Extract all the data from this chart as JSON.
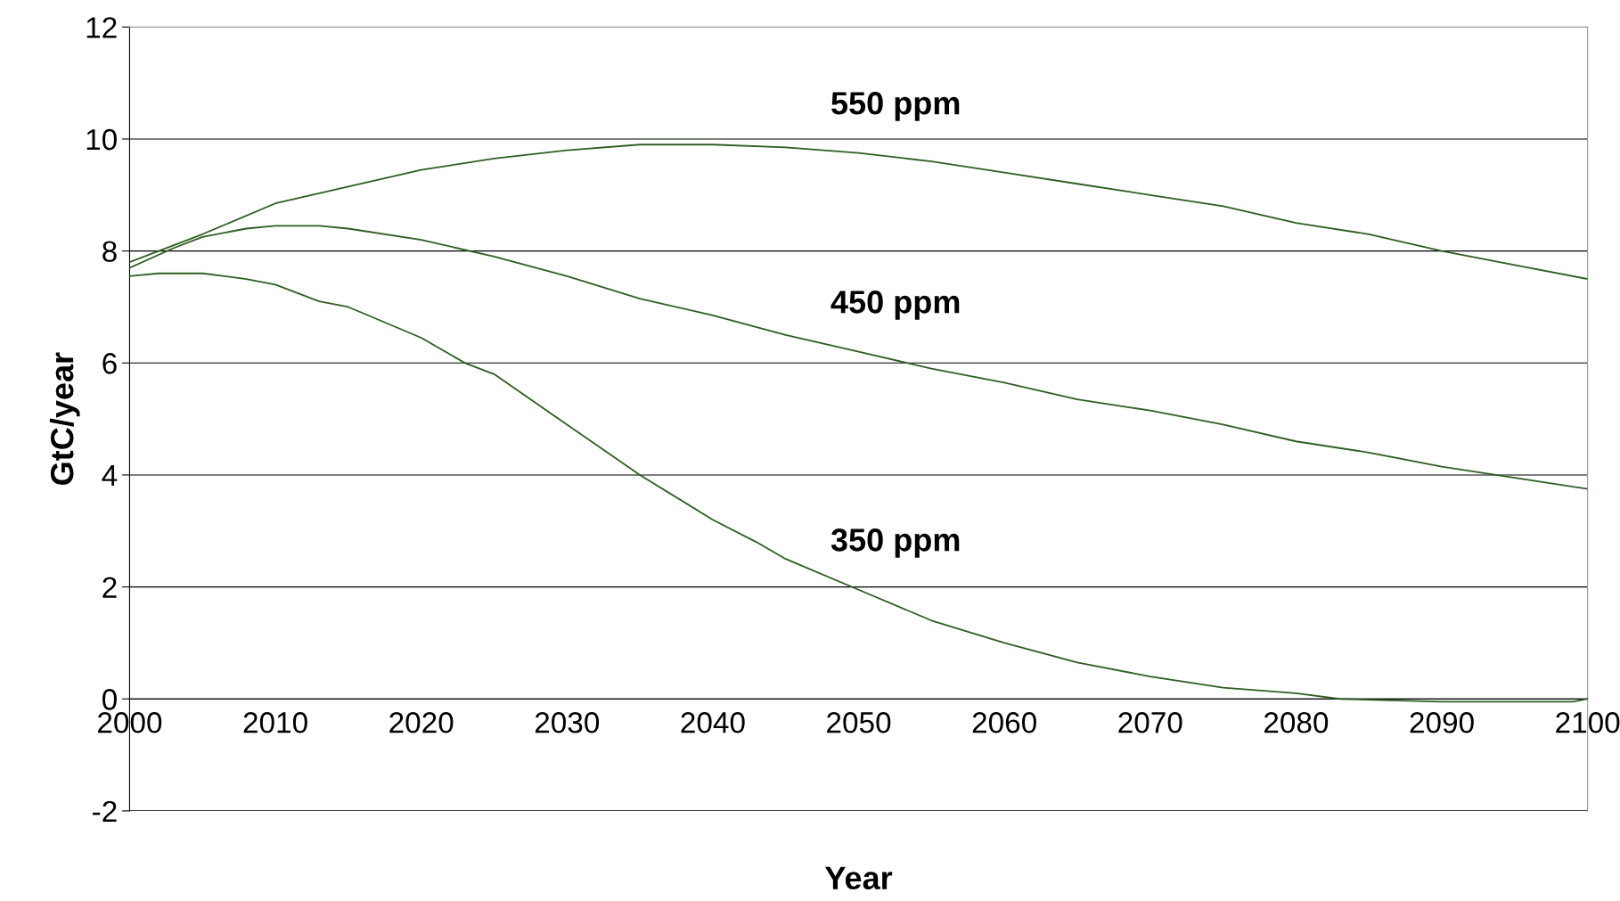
{
  "chart_data": {
    "type": "line",
    "xlabel": "Year",
    "ylabel": "GtC/year",
    "xlim": [
      2000,
      2100
    ],
    "xticks": [
      2000,
      2010,
      2020,
      2030,
      2040,
      2050,
      2060,
      2070,
      2080,
      2090,
      2100
    ],
    "ylim": [
      -2,
      12
    ],
    "yticks": [
      -2,
      0,
      2,
      4,
      6,
      8,
      10,
      12
    ],
    "grid": "y",
    "legend": false,
    "marker": "none",
    "line_style": "solid",
    "series": [
      {
        "name": "550 ppm",
        "color": "#2e5e23",
        "x": [
          2000,
          2005,
          2010,
          2015,
          2020,
          2025,
          2030,
          2035,
          2040,
          2045,
          2050,
          2055,
          2060,
          2065,
          2070,
          2075,
          2080,
          2085,
          2090,
          2095,
          2100
        ],
        "values": [
          7.8,
          8.3,
          8.85,
          9.15,
          9.45,
          9.65,
          9.8,
          9.9,
          9.9,
          9.85,
          9.75,
          9.6,
          9.4,
          9.2,
          9.0,
          8.8,
          8.5,
          8.3,
          8.0,
          7.75,
          7.5
        ]
      },
      {
        "name": "450 ppm",
        "color": "#2e5e23",
        "x": [
          2000,
          2003,
          2005,
          2008,
          2010,
          2013,
          2015,
          2020,
          2025,
          2030,
          2035,
          2040,
          2045,
          2050,
          2055,
          2060,
          2065,
          2070,
          2075,
          2080,
          2085,
          2090,
          2095,
          2100
        ],
        "values": [
          7.7,
          8.05,
          8.25,
          8.4,
          8.45,
          8.45,
          8.4,
          8.2,
          7.9,
          7.55,
          7.15,
          6.85,
          6.5,
          6.2,
          5.9,
          5.65,
          5.35,
          5.15,
          4.9,
          4.6,
          4.4,
          4.15,
          3.95,
          3.75
        ]
      },
      {
        "name": "350 ppm",
        "color": "#2e5e23",
        "x": [
          2000,
          2002,
          2005,
          2008,
          2010,
          2013,
          2015,
          2020,
          2023,
          2025,
          2030,
          2035,
          2040,
          2043,
          2045,
          2050,
          2055,
          2060,
          2065,
          2070,
          2075,
          2080,
          2083,
          2090,
          2099,
          2100
        ],
        "values": [
          7.55,
          7.6,
          7.6,
          7.5,
          7.4,
          7.1,
          7.0,
          6.45,
          6.0,
          5.8,
          4.9,
          4.0,
          3.2,
          2.8,
          2.5,
          1.95,
          1.4,
          1.0,
          0.65,
          0.4,
          0.2,
          0.1,
          0.0,
          -0.05,
          -0.05,
          0.0
        ]
      }
    ]
  }
}
